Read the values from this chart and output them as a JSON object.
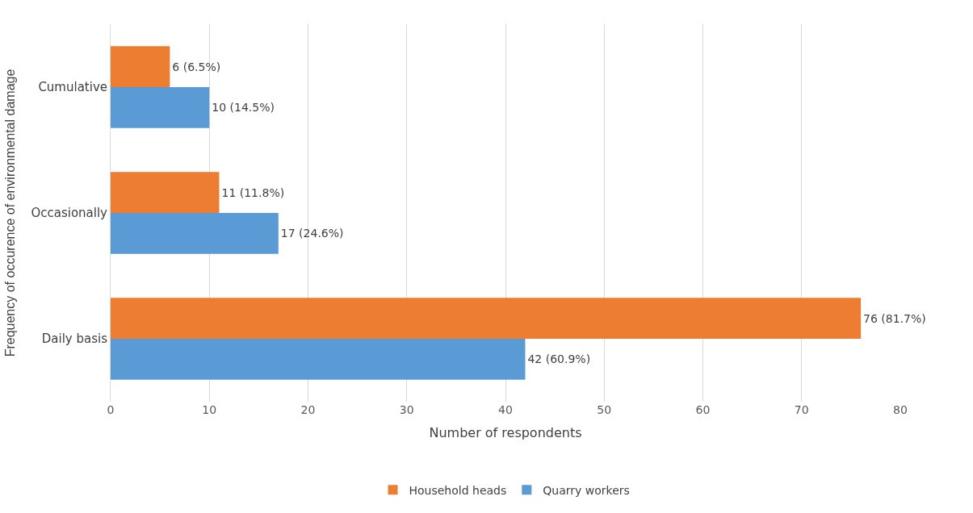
{
  "chart_data": {
    "type": "bar",
    "orientation": "horizontal",
    "xlabel": "Number of respondents",
    "ylabel": "Frequency of occurence of environmental damage",
    "categories": [
      "Cumulative",
      "Occasionally",
      "Daily basis"
    ],
    "series": [
      {
        "name": "Household heads",
        "color": "#ed7d31",
        "values": [
          6,
          11,
          76
        ],
        "value_labels": [
          "6 (6.5%)",
          "11 (11.8%)",
          "76 (81.7%)"
        ]
      },
      {
        "name": "Quarry workers",
        "color": "#5b9bd5",
        "values": [
          10,
          17,
          42
        ],
        "value_labels": [
          "10 (14.5%)",
          "17 (24.6%)",
          "42 (60.9%)"
        ]
      }
    ],
    "xlim": [
      0,
      80
    ],
    "xticks": [
      0,
      10,
      20,
      30,
      40,
      50,
      60,
      70,
      80
    ],
    "grid": "x",
    "legend": "bottom"
  }
}
